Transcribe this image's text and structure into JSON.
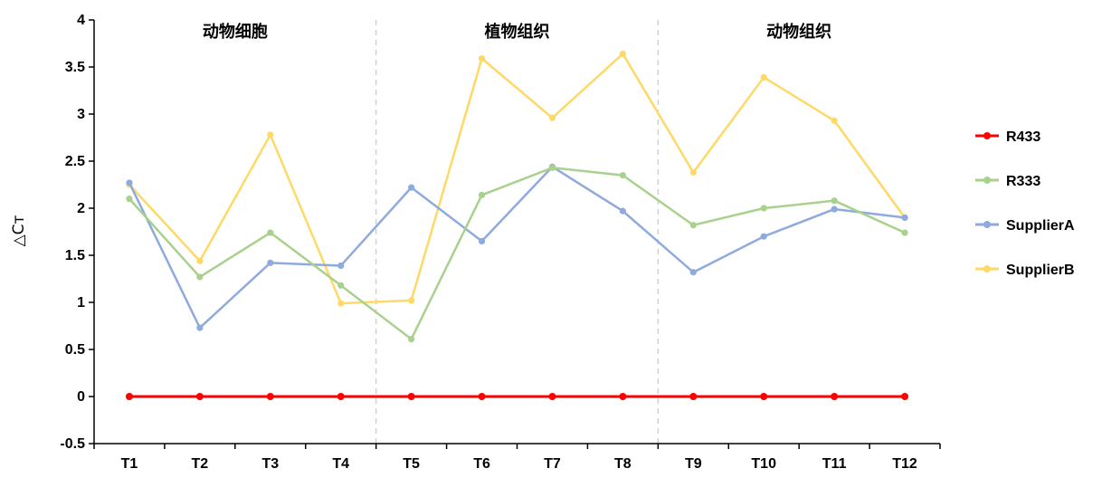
{
  "chart_data": {
    "type": "line",
    "ylabel": "△Cт",
    "ylim": [
      -0.5,
      4
    ],
    "yticks": [
      "-0.5",
      "0",
      "0.5",
      "1",
      "1.5",
      "2",
      "2.5",
      "3",
      "3.5",
      "4"
    ],
    "categories": [
      "T1",
      "T2",
      "T3",
      "T4",
      "T5",
      "T6",
      "T7",
      "T8",
      "T9",
      "T10",
      "T11",
      "T12"
    ],
    "groups": [
      {
        "label": "动物细胞",
        "start": 0,
        "end": 3
      },
      {
        "label": "植物组织",
        "start": 4,
        "end": 7
      },
      {
        "label": "动物组织",
        "start": 8,
        "end": 11
      }
    ],
    "legend_position": "right",
    "grid": false,
    "series": [
      {
        "name": "R433",
        "color": "#ff0000",
        "values": [
          0,
          0,
          0,
          0,
          0,
          0,
          0,
          0,
          0,
          0,
          0,
          0
        ]
      },
      {
        "name": "R333",
        "color": "#a9d18e",
        "values": [
          2.1,
          1.27,
          1.74,
          1.18,
          0.61,
          2.14,
          2.43,
          2.35,
          1.82,
          2.0,
          2.08,
          1.74
        ]
      },
      {
        "name": "SupplierA",
        "color": "#8faadc",
        "values": [
          2.27,
          0.73,
          1.42,
          1.39,
          2.22,
          1.65,
          2.44,
          1.97,
          1.32,
          1.7,
          1.99,
          1.9
        ]
      },
      {
        "name": "SupplierB",
        "color": "#ffd966",
        "values": [
          2.25,
          1.44,
          2.78,
          0.99,
          1.02,
          3.59,
          2.96,
          3.64,
          2.38,
          3.39,
          2.93,
          1.9
        ]
      }
    ]
  }
}
